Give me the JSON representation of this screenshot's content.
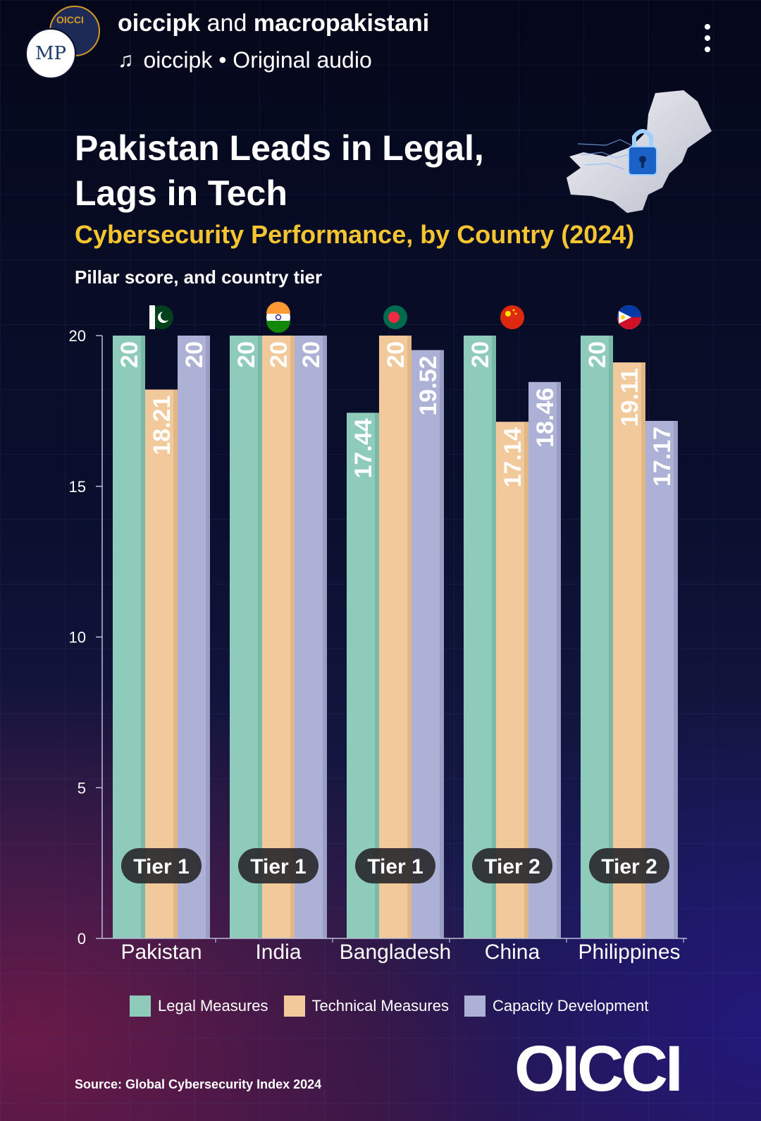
{
  "header": {
    "author_primary": "oiccipk",
    "author_joiner": "and",
    "author_secondary": "macropakistani",
    "audio_text": "oiccipk • Original audio",
    "avatar_front_text": "MP",
    "avatar_back_text": "OICCI"
  },
  "colors": {
    "legal": "#8fcbbb",
    "technical": "#f2c99a",
    "capacity": "#aeb1d6",
    "subtitle": "#f5c431"
  },
  "chart_data": {
    "type": "bar",
    "title": "Pakistan Leads in Legal, Lags in Tech",
    "subtitle": "Cybersecurity Performance, by Country (2024)",
    "ylabel": "Pillar score, and country tier",
    "xlabel": "",
    "ylim": [
      0,
      20
    ],
    "yticks": [
      0,
      5,
      10,
      15,
      20
    ],
    "categories": [
      "Pakistan",
      "India",
      "Bangladesh",
      "China",
      "Philippines"
    ],
    "series": [
      {
        "name": "Legal Measures",
        "values": [
          20,
          20,
          17.44,
          20,
          20
        ]
      },
      {
        "name": "Technical Measures",
        "values": [
          18.21,
          20,
          20,
          17.14,
          19.11
        ]
      },
      {
        "name": "Capacity Development",
        "values": [
          20,
          20,
          19.52,
          18.46,
          17.17
        ]
      }
    ],
    "tiers": [
      "Tier 1",
      "Tier 1",
      "Tier 1",
      "Tier 2",
      "Tier 2"
    ],
    "flags": [
      "pakistan-flag-icon",
      "india-flag-icon",
      "bangladesh-flag-icon",
      "china-flag-icon",
      "philippines-flag-icon"
    ],
    "legend_position": "bottom",
    "grid": false
  },
  "footer": {
    "source": "Source: Global Cybersecurity Index 2024",
    "logo_text": "OICCI"
  }
}
